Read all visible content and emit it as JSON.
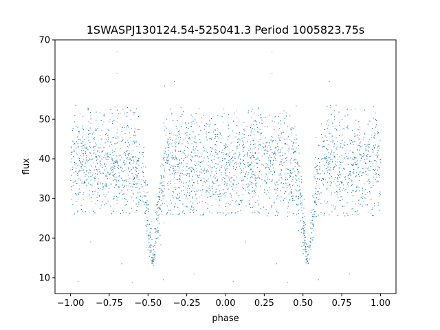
{
  "chart_data": {
    "type": "scatter",
    "title": "1SWASPJ130124.54-525041.3 Period 1005823.75s",
    "xlabel": "phase",
    "ylabel": "flux",
    "xlim": [
      -1.1,
      1.1
    ],
    "ylim": [
      6,
      70
    ],
    "xticks": [
      -1.0,
      -0.75,
      -0.5,
      -0.25,
      0.0,
      0.25,
      0.5,
      0.75,
      1.0
    ],
    "xtick_labels": [
      "−1.00",
      "−0.75",
      "−0.50",
      "−0.25",
      "0.00",
      "0.25",
      "0.50",
      "0.75",
      "1.00"
    ],
    "yticks": [
      10,
      20,
      30,
      40,
      50,
      60,
      70
    ],
    "ytick_labels": [
      "10",
      "20",
      "30",
      "40",
      "50",
      "60",
      "70"
    ],
    "grid": false,
    "point_color": "#1f77b4",
    "baseline": {
      "center": 38.5,
      "spread": 6.5,
      "upper_envelope": 51,
      "lower_envelope": 27
    },
    "eclipses": [
      {
        "phase_center": -0.47,
        "min_flux": 13.5
      },
      {
        "phase_center": 0.53,
        "min_flux": 13.5
      }
    ],
    "series": [
      {
        "points": [
          [
            -1.0,
            38
          ],
          [
            -0.95,
            41
          ],
          [
            -0.9,
            36
          ],
          [
            -0.85,
            40
          ],
          [
            -0.8,
            39
          ],
          [
            -0.75,
            37
          ],
          [
            -0.7,
            40
          ],
          [
            -0.65,
            38
          ],
          [
            -0.6,
            36
          ],
          [
            -0.55,
            31
          ],
          [
            -0.5,
            21
          ],
          [
            -0.47,
            14
          ],
          [
            -0.44,
            22
          ],
          [
            -0.4,
            34
          ],
          [
            -0.35,
            38
          ],
          [
            -0.3,
            40
          ],
          [
            -0.25,
            37
          ],
          [
            -0.2,
            39
          ],
          [
            -0.15,
            38
          ],
          [
            -0.1,
            41
          ],
          [
            -0.05,
            37
          ],
          [
            0.0,
            39
          ],
          [
            0.05,
            40
          ],
          [
            0.1,
            38
          ],
          [
            0.15,
            39
          ],
          [
            0.2,
            37
          ],
          [
            0.25,
            40
          ],
          [
            0.3,
            38
          ],
          [
            0.35,
            39
          ],
          [
            0.4,
            37
          ],
          [
            0.45,
            31
          ],
          [
            0.5,
            21
          ],
          [
            0.53,
            14
          ],
          [
            0.56,
            22
          ],
          [
            0.6,
            34
          ],
          [
            0.65,
            38
          ],
          [
            0.7,
            40
          ],
          [
            0.75,
            37
          ],
          [
            0.8,
            39
          ],
          [
            0.85,
            38
          ],
          [
            0.9,
            40
          ],
          [
            0.95,
            37
          ],
          [
            1.0,
            39
          ]
        ]
      }
    ],
    "outliers": [
      [
        -0.7,
        67
      ],
      [
        0.3,
        67
      ],
      [
        -0.7,
        61.5
      ],
      [
        0.3,
        61.5
      ],
      [
        -0.33,
        59.5
      ],
      [
        0.67,
        59.5
      ],
      [
        -0.95,
        9
      ],
      [
        0.05,
        9
      ],
      [
        -0.6,
        8.8
      ],
      [
        0.4,
        8.8
      ],
      [
        -0.87,
        19
      ],
      [
        0.13,
        19
      ],
      [
        -0.67,
        13.5
      ],
      [
        0.33,
        13.5
      ],
      [
        -0.2,
        11
      ],
      [
        0.8,
        11
      ],
      [
        -0.4,
        9.5
      ],
      [
        0.6,
        9.5
      ]
    ]
  }
}
